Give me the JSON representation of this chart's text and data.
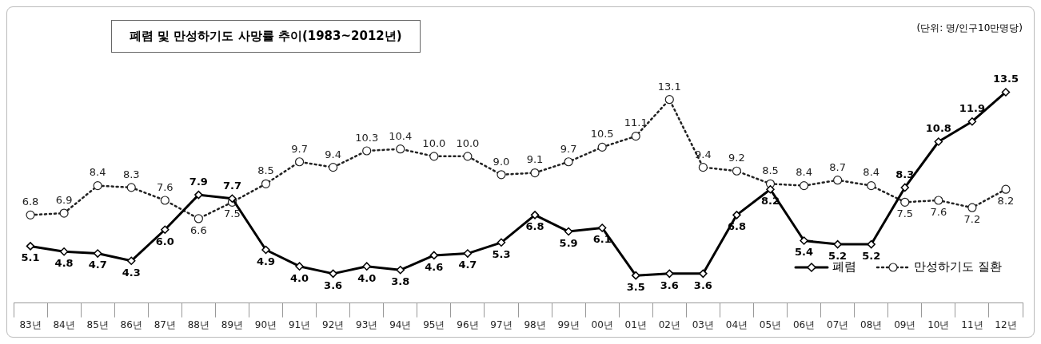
{
  "chart_data": {
    "type": "line",
    "title": "폐렴 및 만성하기도 사망률 추이(1983~2012년)",
    "annotations": [
      "(단위: 명/인구10만명당)"
    ],
    "categories": [
      "83년",
      "84년",
      "85년",
      "86년",
      "87년",
      "88년",
      "89년",
      "90년",
      "91년",
      "92년",
      "93년",
      "94년",
      "95년",
      "96년",
      "97년",
      "98년",
      "99년",
      "00년",
      "01년",
      "02년",
      "03년",
      "04년",
      "05년",
      "06년",
      "07년",
      "08년",
      "09년",
      "10년",
      "11년",
      "12년"
    ],
    "series": [
      {
        "name": "폐렴",
        "color": "#000000",
        "marker": "diamond",
        "line_style": "solid",
        "values": [
          5.1,
          4.8,
          4.7,
          4.3,
          6.0,
          7.9,
          7.7,
          4.9,
          4.0,
          3.6,
          4.0,
          3.8,
          4.6,
          4.7,
          5.3,
          6.8,
          5.9,
          6.1,
          3.5,
          3.6,
          3.6,
          6.8,
          8.2,
          5.4,
          5.2,
          5.2,
          8.3,
          10.8,
          11.9,
          13.5
        ],
        "value_labels": [
          "5.1",
          "4.8",
          "4.7",
          "4.3",
          "6.0",
          "7.9",
          "7.7",
          "4.9",
          "4.0",
          "3.6",
          "4.0",
          "3.8",
          "4.6",
          "4.7",
          "5.3",
          "6.8",
          "5.9",
          "6.1",
          "3.5",
          "3.6",
          "3.6",
          "6.8",
          "8.2",
          "5.4",
          "5.2",
          "5.2",
          "8.3",
          "10.8",
          "11.9",
          "13.5"
        ]
      },
      {
        "name": "만성하기도 질환",
        "color": "#222222",
        "marker": "circle",
        "line_style": "dotted",
        "values": [
          6.8,
          6.9,
          8.4,
          8.3,
          7.6,
          6.6,
          7.5,
          8.5,
          9.7,
          9.4,
          10.3,
          10.4,
          10.0,
          10.0,
          9.0,
          9.1,
          9.7,
          10.5,
          11.1,
          13.1,
          9.4,
          9.2,
          8.5,
          8.4,
          8.7,
          8.4,
          7.5,
          7.6,
          7.2,
          8.2
        ],
        "value_labels": [
          "6.8",
          "6.9",
          "8.4",
          "8.3",
          "7.6",
          "6.6",
          "7.5",
          "8.5",
          "9.7",
          "9.4",
          "10.3",
          "10.4",
          "10.0",
          "10.0",
          "9.0",
          "9.1",
          "9.7",
          "10.5",
          "11.1",
          "13.1",
          "9.4",
          "9.2",
          "8.5",
          "8.4",
          "8.7",
          "8.4",
          "7.5",
          "7.6",
          "7.2",
          "8.2"
        ]
      }
    ],
    "legend": "bottom right",
    "grid": false
  }
}
